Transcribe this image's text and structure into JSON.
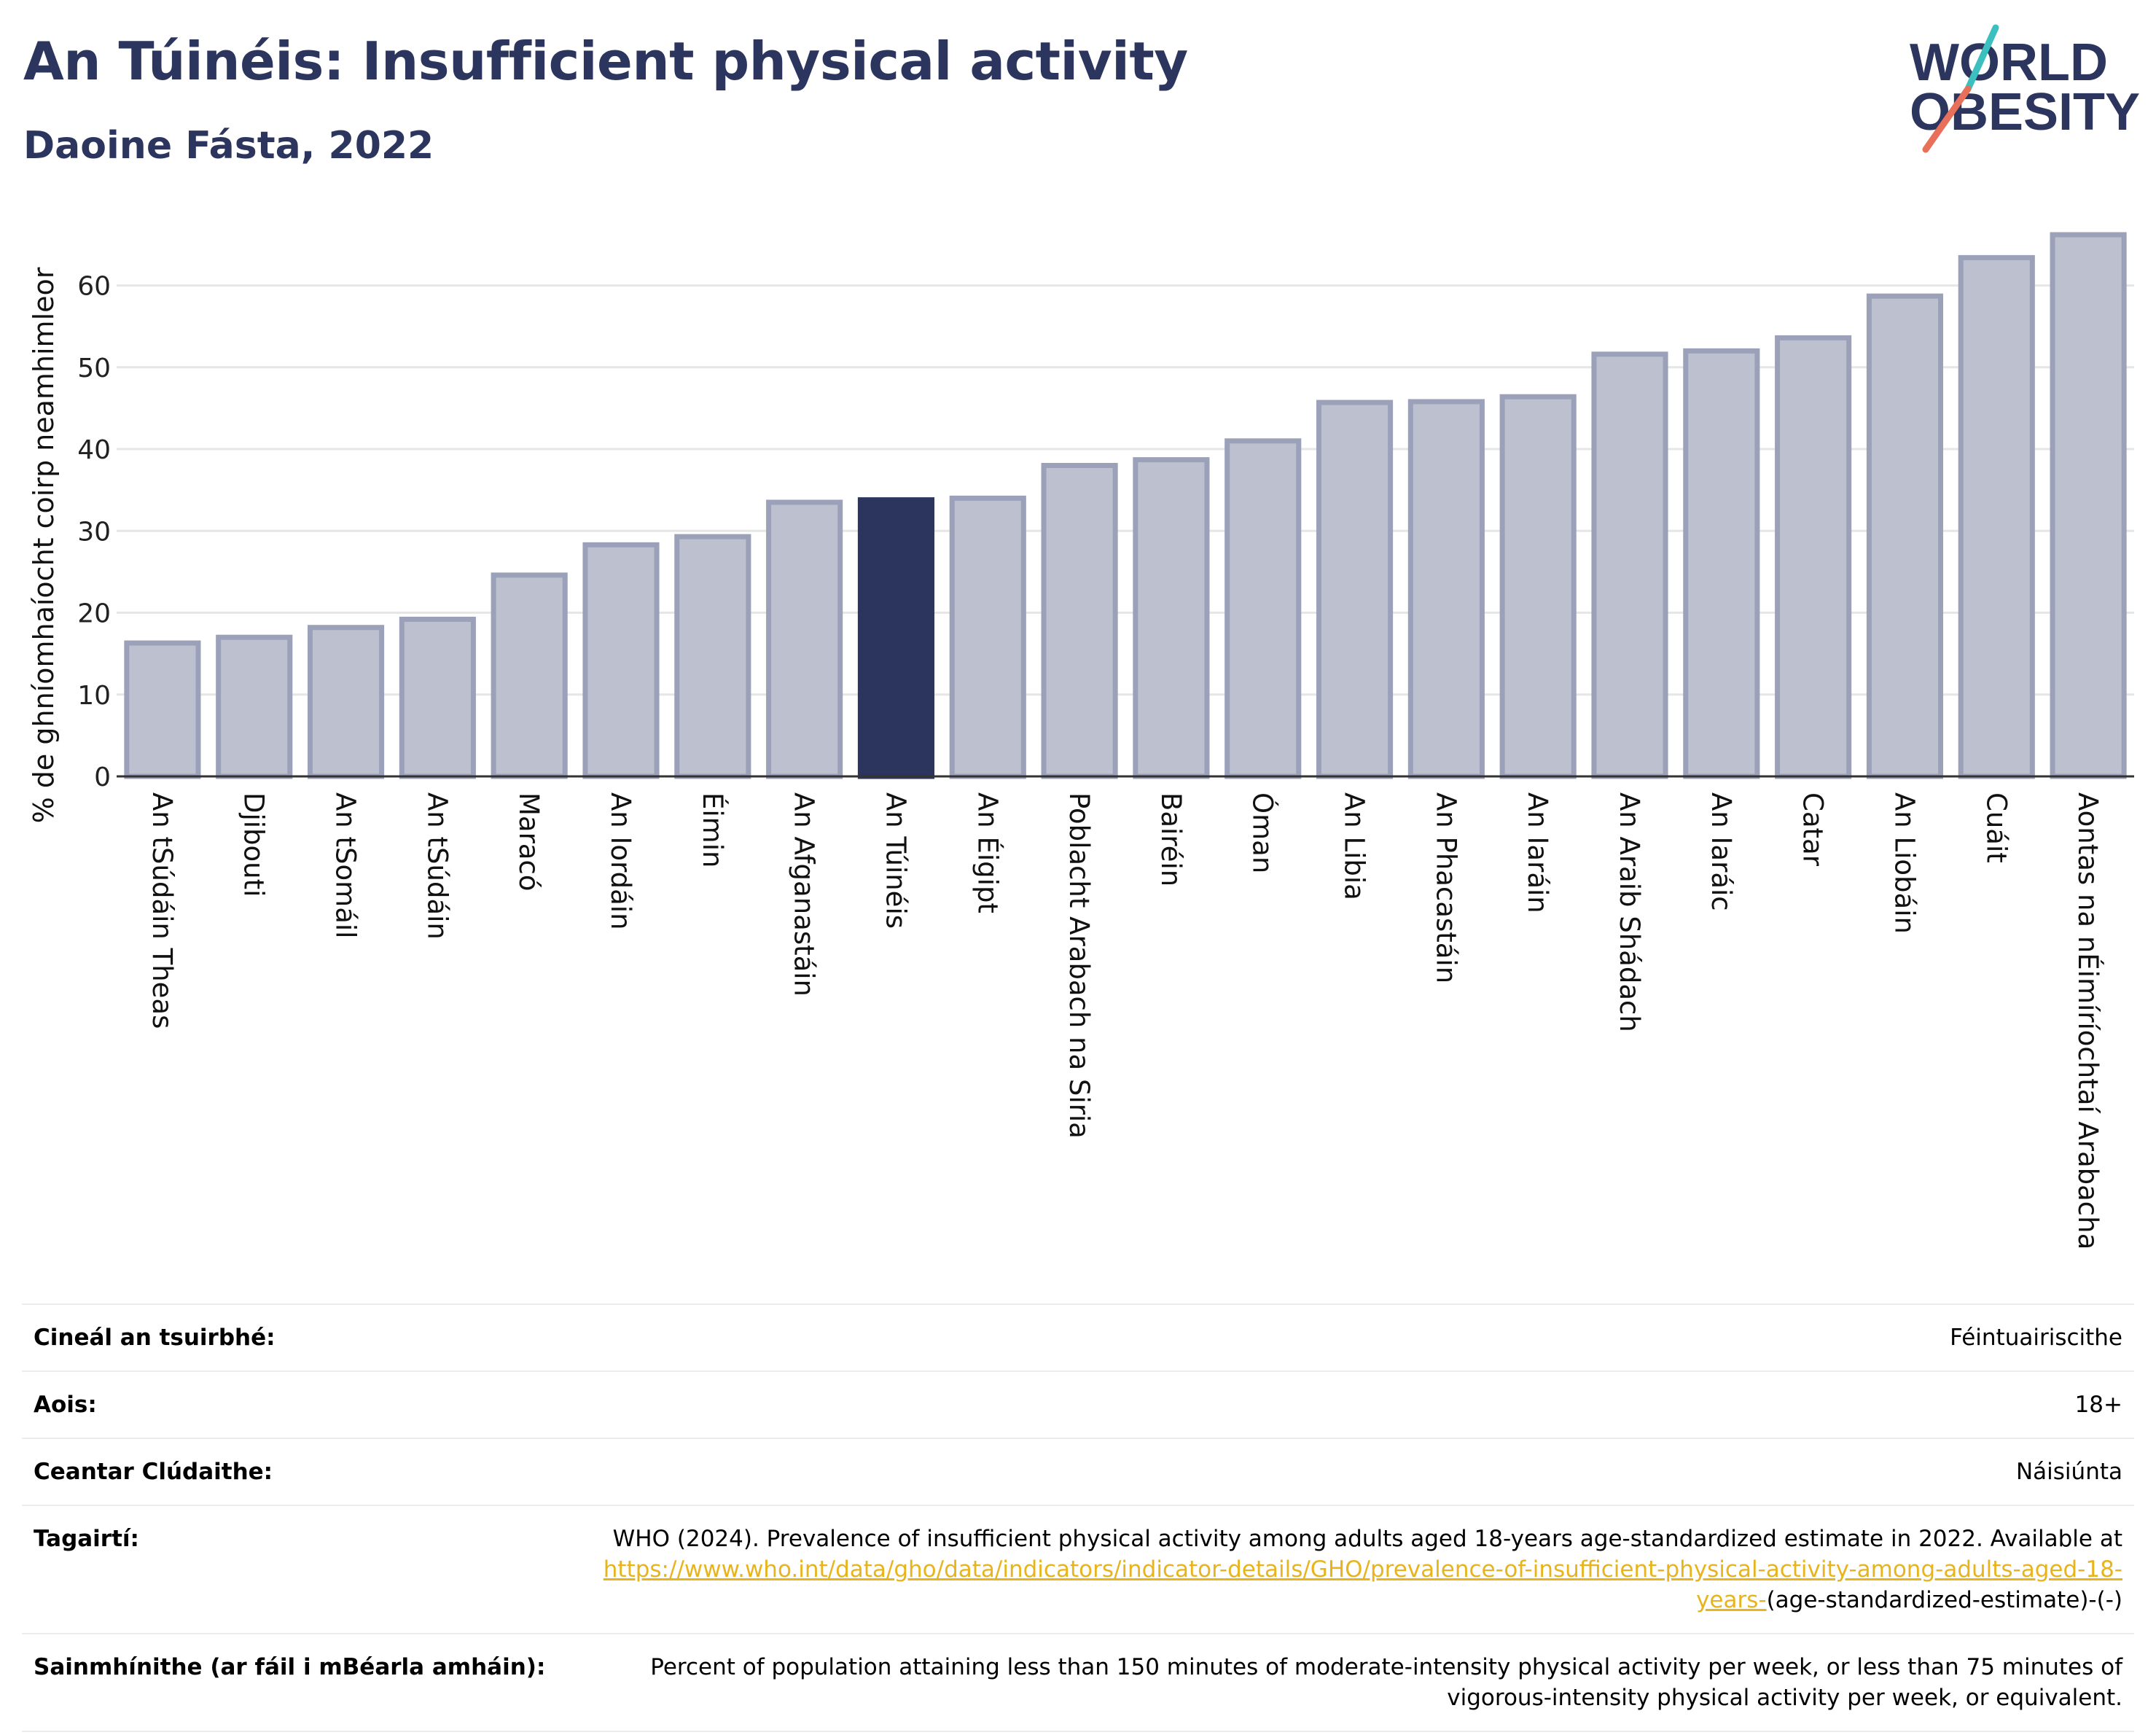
{
  "title": "An Túinéis: Insufficient physical activity",
  "subtitle": "Daoine Fásta, 2022",
  "logo": {
    "line1": "WORLD",
    "line2": "OBESITY"
  },
  "colors": {
    "highlight": "#2b355e",
    "bar": "#bcc0cf",
    "bar_edge": "#9ba1b8",
    "title": "#2b355e",
    "link": "#e8b41e"
  },
  "chart_data": {
    "type": "bar",
    "title": "An Túinéis: Insufficient physical activity",
    "subtitle": "Daoine Fásta, 2022",
    "xlabel": "",
    "ylabel": "% de ghníomhaíocht coirp neamhimleor",
    "ylim": [
      0,
      67
    ],
    "yticks": [
      0,
      10,
      20,
      30,
      40,
      50,
      60
    ],
    "grid": true,
    "highlight": "An Túinéis",
    "categories": [
      "An tSúdáin Theas",
      "Djibouti",
      "An tSomáil",
      "An tSúdáin",
      "Maracó",
      "An Iordáin",
      "Éimin",
      "An Afganastáin",
      "An Túinéis",
      "An Éigipt",
      "Poblacht Arabach na Siria",
      "Bairéin",
      "Óman",
      "An Libia",
      "An Phacastáin",
      "An Iaráin",
      "An Araib Shádach",
      "An Iaráic",
      "Catar",
      "An Liobáin",
      "Cuáit",
      "Aontas na nÉimíríochtaí Arabacha"
    ],
    "values": [
      16.3,
      17.0,
      18.2,
      19.2,
      24.6,
      28.3,
      29.3,
      33.5,
      33.8,
      34.0,
      38.0,
      38.7,
      41.0,
      45.7,
      45.8,
      46.4,
      51.6,
      52.0,
      53.6,
      58.7,
      63.4,
      66.2
    ]
  },
  "table": [
    {
      "label": "Cineál an tsuirbhé:",
      "value": "Féintuairiscithe"
    },
    {
      "label": "Aois:",
      "value": "18+"
    },
    {
      "label": "Ceantar Clúdaithe:",
      "value": "Náisiúnta"
    },
    {
      "label": "Tagairtí:",
      "value": "WHO (2024). Prevalence of insufficient physical activity among adults aged 18-years age-standardized estimate in 2022. Available at",
      "link": "https://www.who.int/data/gho/data/indicators/indicator-details/GHO/prevalence-of-insufficient-physical-activity-among-adults-aged-18-years-",
      "suffix": "(age-standardized-estimate)-(-)"
    },
    {
      "label": "Sainmhínithe (ar fáil i mBéarla amháin):",
      "value": "Percent of population attaining less than 150 minutes of moderate-intensity physical activity per week, or less than 75 minutes of vigorous-intensity physical activity per week, or equivalent."
    }
  ]
}
